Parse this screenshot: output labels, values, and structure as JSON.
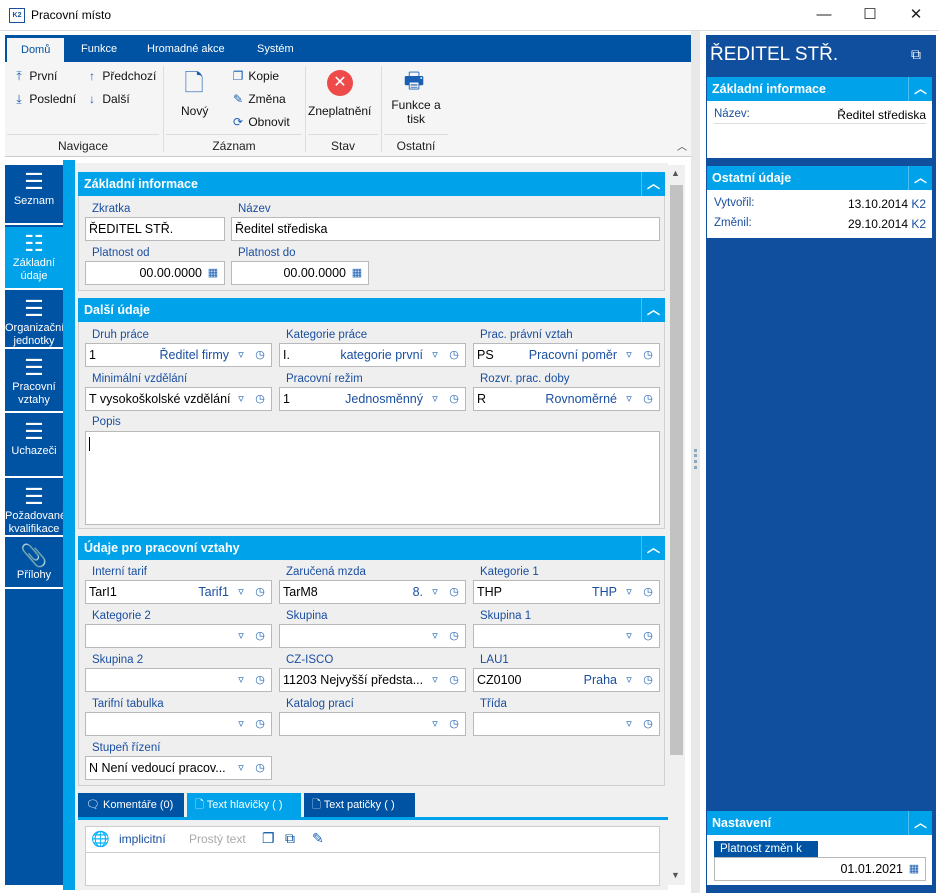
{
  "window": {
    "title": "Pracovní místo",
    "minimize": "—",
    "maximize": "☐",
    "close": "✕",
    "logo": "K2"
  },
  "ribbon": {
    "tabs": [
      "Domů",
      "Funkce",
      "Hromadné akce",
      "Systém"
    ],
    "nav": {
      "first": "První",
      "last": "Poslední",
      "prev": "Předchozí",
      "next": "Další",
      "group": "Navigace"
    },
    "record": {
      "new": "Nový",
      "copy": "Kopie",
      "change": "Změna",
      "refresh": "Obnovit",
      "group": "Záznam"
    },
    "state": {
      "invalidate": "Zneplatnění",
      "group": "Stav"
    },
    "other": {
      "print": "Funkce a tisk",
      "group": "Ostatní"
    }
  },
  "sidebar": {
    "items": [
      {
        "label": "Seznam"
      },
      {
        "label": "Základní údaje"
      },
      {
        "label": "Organizační jednotky"
      },
      {
        "label": "Pracovní vztahy"
      },
      {
        "label": "Uchazeči"
      },
      {
        "label": "Požadované kvalifikace"
      },
      {
        "label": "Přílohy"
      }
    ]
  },
  "sections": {
    "basic": {
      "title": "Základní informace",
      "zkratka_label": "Zkratka",
      "zkratka": "ŘEDITEL STŘ.",
      "nazev_label": "Název",
      "nazev": "Ředitel střediska",
      "od_label": "Platnost od",
      "od": "00.00.0000",
      "do_label": "Platnost do",
      "do": "00.00.0000"
    },
    "other": {
      "title": "Další údaje",
      "fields": [
        {
          "label": "Druh práce",
          "code": "1",
          "desc": "Ředitel firmy"
        },
        {
          "label": "Kategorie práce",
          "code": "I.",
          "desc": "kategorie první"
        },
        {
          "label": "Prac. právní vztah",
          "code": "PS",
          "desc": "Pracovní poměr"
        },
        {
          "label": "Minimální vzdělání",
          "code": "T vysokoškolské vzdělání",
          "desc": ""
        },
        {
          "label": "Pracovní režim",
          "code": "1",
          "desc": "Jednosměnný"
        },
        {
          "label": "Rozvr. prac. doby",
          "code": "R",
          "desc": "Rovnoměrné"
        }
      ],
      "popis_label": "Popis",
      "popis": ""
    },
    "relations": {
      "title": "Údaje pro pracovní vztahy",
      "fields": [
        {
          "label": "Interní tarif",
          "code": "TarI1",
          "desc": "Tarif1"
        },
        {
          "label": "Zaručená mzda",
          "code": "TarM8",
          "desc": "8."
        },
        {
          "label": "Kategorie 1",
          "code": "THP",
          "desc": "THP"
        },
        {
          "label": "Kategorie 2",
          "code": "",
          "desc": ""
        },
        {
          "label": "Skupina",
          "code": "",
          "desc": ""
        },
        {
          "label": "Skupina 1",
          "code": "",
          "desc": ""
        },
        {
          "label": "Skupina 2",
          "code": "",
          "desc": ""
        },
        {
          "label": "CZ-ISCO",
          "code": "11203 Nejvyšší předsta...",
          "desc": ""
        },
        {
          "label": "LAU1",
          "code": "CZ0100",
          "desc": "Praha"
        },
        {
          "label": "Tarifní tabulka",
          "code": "",
          "desc": ""
        },
        {
          "label": "Katalog prací",
          "code": "",
          "desc": ""
        },
        {
          "label": "Třída",
          "code": "",
          "desc": ""
        },
        {
          "label": "Stupeň řízení",
          "code": "N Není vedoucí pracov...",
          "desc": ""
        }
      ]
    }
  },
  "bottom_tabs": [
    {
      "label": "Komentáře (0)"
    },
    {
      "label": "Text hlavičky ( )"
    },
    {
      "label": "Text patičky ( )"
    }
  ],
  "editor": {
    "language": "implicitní",
    "format": "Prostý text"
  },
  "right_panel": {
    "title": "ŘEDITEL STŘ.",
    "basic": {
      "title": "Základní informace",
      "nazev_label": "Název:",
      "nazev": "Ředitel střediska"
    },
    "other": {
      "title": "Ostatní údaje",
      "created_label": "Vytvořil:",
      "created": "13.10.2014",
      "created_by": "K2",
      "changed_label": "Změnil:",
      "changed": "29.10.2014",
      "changed_by": "K2"
    },
    "settings": {
      "title": "Nastavení",
      "valid_label": "Platnost změn k",
      "valid": "01.01.2021"
    }
  },
  "colors": {
    "dark_blue": "#0052a3",
    "cyan": "#00a3ea",
    "label_blue": "#1a4fa0"
  }
}
